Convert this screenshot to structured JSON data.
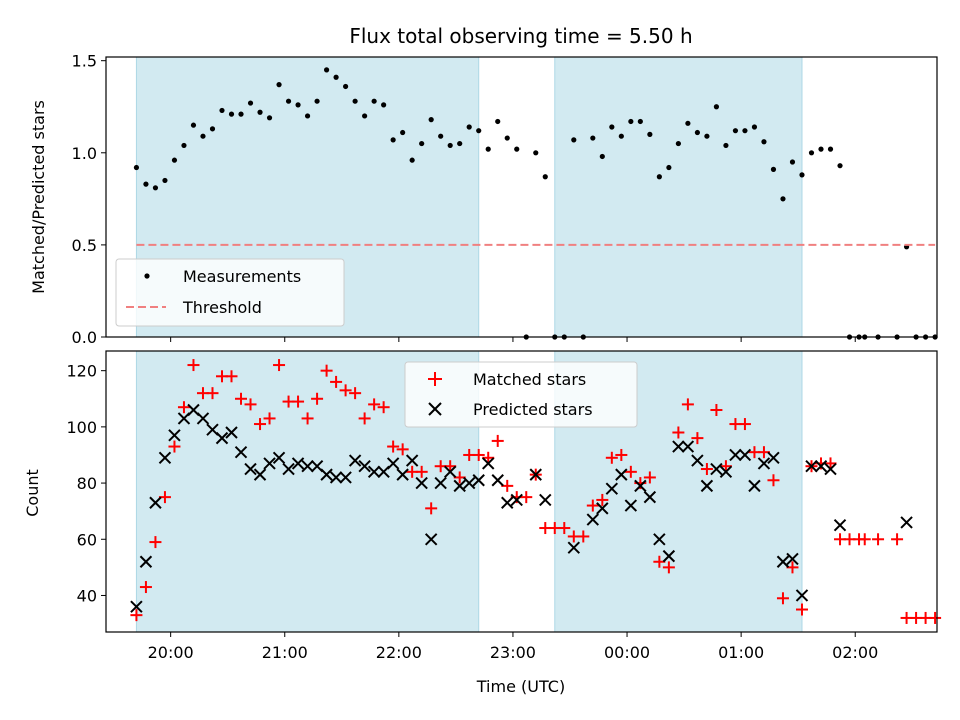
{
  "chart_data": [
    {
      "type": "scatter",
      "title": "Flux total observing time = 5.50 h",
      "xlabel": "",
      "ylabel": "Matched/Predicted stars",
      "xlim": [
        "19:26",
        "02:43"
      ],
      "ylim": [
        0,
        1.52
      ],
      "yticks": [
        "0.0",
        "0.5",
        "1.0",
        "1.5"
      ],
      "xticks": [
        "20:00",
        "21:00",
        "22:00",
        "23:00",
        "00:00",
        "01:00",
        "02:00"
      ],
      "grid": false,
      "legend_position": "lower-left",
      "shaded_spans": [
        [
          "19:42",
          "22:42"
        ],
        [
          "23:22",
          "01:32"
        ]
      ],
      "series": [
        {
          "name": "Measurements",
          "marker": "dot",
          "color": "#000000",
          "points": [
            [
              "19:42",
              0.92
            ],
            [
              "19:47",
              0.83
            ],
            [
              "19:52",
              0.81
            ],
            [
              "19:57",
              0.85
            ],
            [
              "20:02",
              0.96
            ],
            [
              "20:07",
              1.04
            ],
            [
              "20:12",
              1.15
            ],
            [
              "20:17",
              1.09
            ],
            [
              "20:22",
              1.13
            ],
            [
              "20:27",
              1.23
            ],
            [
              "20:32",
              1.21
            ],
            [
              "20:37",
              1.21
            ],
            [
              "20:42",
              1.27
            ],
            [
              "20:47",
              1.22
            ],
            [
              "20:52",
              1.19
            ],
            [
              "20:57",
              1.37
            ],
            [
              "21:02",
              1.28
            ],
            [
              "21:07",
              1.26
            ],
            [
              "21:12",
              1.2
            ],
            [
              "21:17",
              1.28
            ],
            [
              "21:22",
              1.45
            ],
            [
              "21:27",
              1.41
            ],
            [
              "21:32",
              1.36
            ],
            [
              "21:37",
              1.28
            ],
            [
              "21:42",
              1.2
            ],
            [
              "21:47",
              1.28
            ],
            [
              "21:52",
              1.26
            ],
            [
              "21:57",
              1.07
            ],
            [
              "22:02",
              1.11
            ],
            [
              "22:07",
              0.96
            ],
            [
              "22:12",
              1.05
            ],
            [
              "22:17",
              1.18
            ],
            [
              "22:22",
              1.09
            ],
            [
              "22:27",
              1.04
            ],
            [
              "22:32",
              1.05
            ],
            [
              "22:37",
              1.14
            ],
            [
              "22:42",
              1.12
            ],
            [
              "22:47",
              1.02
            ],
            [
              "22:52",
              1.17
            ],
            [
              "22:57",
              1.08
            ],
            [
              "23:02",
              1.02
            ],
            [
              "23:07",
              0.0
            ],
            [
              "23:12",
              1.0
            ],
            [
              "23:17",
              0.87
            ],
            [
              "23:22",
              0.0
            ],
            [
              "23:27",
              0.0
            ],
            [
              "23:32",
              1.07
            ],
            [
              "23:37",
              0.0
            ],
            [
              "23:42",
              1.08
            ],
            [
              "23:47",
              0.98
            ],
            [
              "23:52",
              1.14
            ],
            [
              "23:57",
              1.09
            ],
            [
              "00:02",
              1.17
            ],
            [
              "00:07",
              1.17
            ],
            [
              "00:12",
              1.1
            ],
            [
              "00:17",
              0.87
            ],
            [
              "00:22",
              0.92
            ],
            [
              "00:27",
              1.05
            ],
            [
              "00:32",
              1.16
            ],
            [
              "00:37",
              1.11
            ],
            [
              "00:42",
              1.09
            ],
            [
              "00:47",
              1.25
            ],
            [
              "00:52",
              1.04
            ],
            [
              "00:57",
              1.12
            ],
            [
              "01:02",
              1.12
            ],
            [
              "01:07",
              1.14
            ],
            [
              "01:12",
              1.06
            ],
            [
              "01:17",
              0.91
            ],
            [
              "01:22",
              0.75
            ],
            [
              "01:27",
              0.95
            ],
            [
              "01:32",
              0.88
            ],
            [
              "01:37",
              1.0
            ],
            [
              "01:42",
              1.02
            ],
            [
              "01:47",
              1.02
            ],
            [
              "01:52",
              0.93
            ],
            [
              "01:57",
              0.0
            ],
            [
              "02:02",
              0.0
            ],
            [
              "02:05",
              0.0
            ],
            [
              "02:12",
              0.0
            ],
            [
              "02:22",
              0.0
            ],
            [
              "02:27",
              0.49
            ],
            [
              "02:32",
              0.0
            ],
            [
              "02:37",
              0.0
            ],
            [
              "02:42",
              0.0
            ]
          ]
        },
        {
          "name": "Threshold",
          "marker": "dashed-line",
          "color": "#f08080",
          "points": [
            [
              "19:42",
              0.5
            ],
            [
              "02:42",
              0.5
            ]
          ]
        }
      ]
    },
    {
      "type": "scatter",
      "title": "",
      "xlabel": "Time (UTC)",
      "ylabel": "Count",
      "xlim": [
        "19:26",
        "02:43"
      ],
      "ylim": [
        27,
        127
      ],
      "yticks": [
        "40",
        "60",
        "80",
        "100",
        "120"
      ],
      "xticks": [
        "20:00",
        "21:00",
        "22:00",
        "23:00",
        "00:00",
        "01:00",
        "02:00"
      ],
      "grid": false,
      "legend_position": "top-center",
      "shaded_spans": [
        [
          "19:42",
          "22:42"
        ],
        [
          "23:22",
          "01:32"
        ]
      ],
      "series": [
        {
          "name": "Matched stars",
          "marker": "plus",
          "color": "#ff0000",
          "points": [
            [
              "19:42",
              33
            ],
            [
              "19:47",
              43
            ],
            [
              "19:52",
              59
            ],
            [
              "19:57",
              75
            ],
            [
              "20:02",
              93
            ],
            [
              "20:07",
              107
            ],
            [
              "20:12",
              122
            ],
            [
              "20:17",
              112
            ],
            [
              "20:22",
              112
            ],
            [
              "20:27",
              118
            ],
            [
              "20:32",
              118
            ],
            [
              "20:37",
              110
            ],
            [
              "20:42",
              108
            ],
            [
              "20:47",
              101
            ],
            [
              "20:52",
              103
            ],
            [
              "20:57",
              122
            ],
            [
              "21:02",
              109
            ],
            [
              "21:07",
              109
            ],
            [
              "21:12",
              103
            ],
            [
              "21:17",
              110
            ],
            [
              "21:22",
              120
            ],
            [
              "21:27",
              116
            ],
            [
              "21:32",
              113
            ],
            [
              "21:37",
              112
            ],
            [
              "21:42",
              103
            ],
            [
              "21:47",
              108
            ],
            [
              "21:52",
              107
            ],
            [
              "21:57",
              93
            ],
            [
              "22:02",
              92
            ],
            [
              "22:07",
              84
            ],
            [
              "22:12",
              84
            ],
            [
              "22:17",
              71
            ],
            [
              "22:22",
              86
            ],
            [
              "22:27",
              86
            ],
            [
              "22:32",
              82
            ],
            [
              "22:37",
              90
            ],
            [
              "22:42",
              90
            ],
            [
              "22:47",
              89
            ],
            [
              "22:52",
              95
            ],
            [
              "22:57",
              79
            ],
            [
              "23:02",
              75
            ],
            [
              "23:07",
              75
            ],
            [
              "23:12",
              83
            ],
            [
              "23:17",
              64
            ],
            [
              "23:22",
              64
            ],
            [
              "23:27",
              64
            ],
            [
              "23:32",
              61
            ],
            [
              "23:37",
              61
            ],
            [
              "23:42",
              72
            ],
            [
              "23:47",
              74
            ],
            [
              "23:52",
              89
            ],
            [
              "23:57",
              90
            ],
            [
              "00:02",
              84
            ],
            [
              "00:07",
              80
            ],
            [
              "00:12",
              82
            ],
            [
              "00:17",
              52
            ],
            [
              "00:22",
              50
            ],
            [
              "00:27",
              98
            ],
            [
              "00:32",
              108
            ],
            [
              "00:37",
              96
            ],
            [
              "00:42",
              85
            ],
            [
              "00:47",
              106
            ],
            [
              "00:52",
              86
            ],
            [
              "00:57",
              101
            ],
            [
              "01:02",
              101
            ],
            [
              "01:07",
              91
            ],
            [
              "01:12",
              91
            ],
            [
              "01:17",
              81
            ],
            [
              "01:22",
              39
            ],
            [
              "01:27",
              50
            ],
            [
              "01:32",
              35
            ],
            [
              "01:37",
              86
            ],
            [
              "01:42",
              87
            ],
            [
              "01:47",
              87
            ],
            [
              "01:52",
              60
            ],
            [
              "01:57",
              60
            ],
            [
              "02:02",
              60
            ],
            [
              "02:05",
              60
            ],
            [
              "02:12",
              60
            ],
            [
              "02:22",
              60
            ],
            [
              "02:27",
              32
            ],
            [
              "02:32",
              32
            ],
            [
              "02:37",
              32
            ],
            [
              "02:42",
              32
            ]
          ]
        },
        {
          "name": "Predicted stars",
          "marker": "x",
          "color": "#000000",
          "points": [
            [
              "19:42",
              36
            ],
            [
              "19:47",
              52
            ],
            [
              "19:52",
              73
            ],
            [
              "19:57",
              89
            ],
            [
              "20:02",
              97
            ],
            [
              "20:07",
              103
            ],
            [
              "20:12",
              106
            ],
            [
              "20:17",
              103
            ],
            [
              "20:22",
              99
            ],
            [
              "20:27",
              96
            ],
            [
              "20:32",
              98
            ],
            [
              "20:37",
              91
            ],
            [
              "20:42",
              85
            ],
            [
              "20:47",
              83
            ],
            [
              "20:52",
              87
            ],
            [
              "20:57",
              89
            ],
            [
              "21:02",
              85
            ],
            [
              "21:07",
              87
            ],
            [
              "21:12",
              86
            ],
            [
              "21:17",
              86
            ],
            [
              "21:22",
              83
            ],
            [
              "21:27",
              82
            ],
            [
              "21:32",
              82
            ],
            [
              "21:37",
              88
            ],
            [
              "21:42",
              86
            ],
            [
              "21:47",
              84
            ],
            [
              "21:52",
              84
            ],
            [
              "21:57",
              87
            ],
            [
              "22:02",
              83
            ],
            [
              "22:07",
              88
            ],
            [
              "22:12",
              80
            ],
            [
              "22:17",
              60
            ],
            [
              "22:22",
              80
            ],
            [
              "22:27",
              84
            ],
            [
              "22:32",
              79
            ],
            [
              "22:37",
              80
            ],
            [
              "22:42",
              81
            ],
            [
              "22:47",
              87
            ],
            [
              "22:52",
              81
            ],
            [
              "22:57",
              73
            ],
            [
              "23:02",
              74
            ],
            [
              "23:12",
              83
            ],
            [
              "23:17",
              74
            ],
            [
              "23:32",
              57
            ],
            [
              "23:42",
              67
            ],
            [
              "23:47",
              71
            ],
            [
              "23:52",
              78
            ],
            [
              "23:57",
              83
            ],
            [
              "00:02",
              72
            ],
            [
              "00:07",
              79
            ],
            [
              "00:12",
              75
            ],
            [
              "00:17",
              60
            ],
            [
              "00:22",
              54
            ],
            [
              "00:27",
              93
            ],
            [
              "00:32",
              93
            ],
            [
              "00:37",
              88
            ],
            [
              "00:42",
              79
            ],
            [
              "00:47",
              85
            ],
            [
              "00:52",
              84
            ],
            [
              "00:57",
              90
            ],
            [
              "01:02",
              90
            ],
            [
              "01:07",
              79
            ],
            [
              "01:12",
              87
            ],
            [
              "01:17",
              89
            ],
            [
              "01:22",
              52
            ],
            [
              "01:27",
              53
            ],
            [
              "01:32",
              40
            ],
            [
              "01:37",
              86
            ],
            [
              "01:42",
              86
            ],
            [
              "01:47",
              85
            ],
            [
              "01:52",
              65
            ],
            [
              "02:27",
              66
            ]
          ]
        }
      ]
    }
  ],
  "colors": {
    "shade": "#add8e6",
    "matched": "#ff0000",
    "predicted": "#000000",
    "measurement": "#000000",
    "threshold": "#f08080"
  }
}
